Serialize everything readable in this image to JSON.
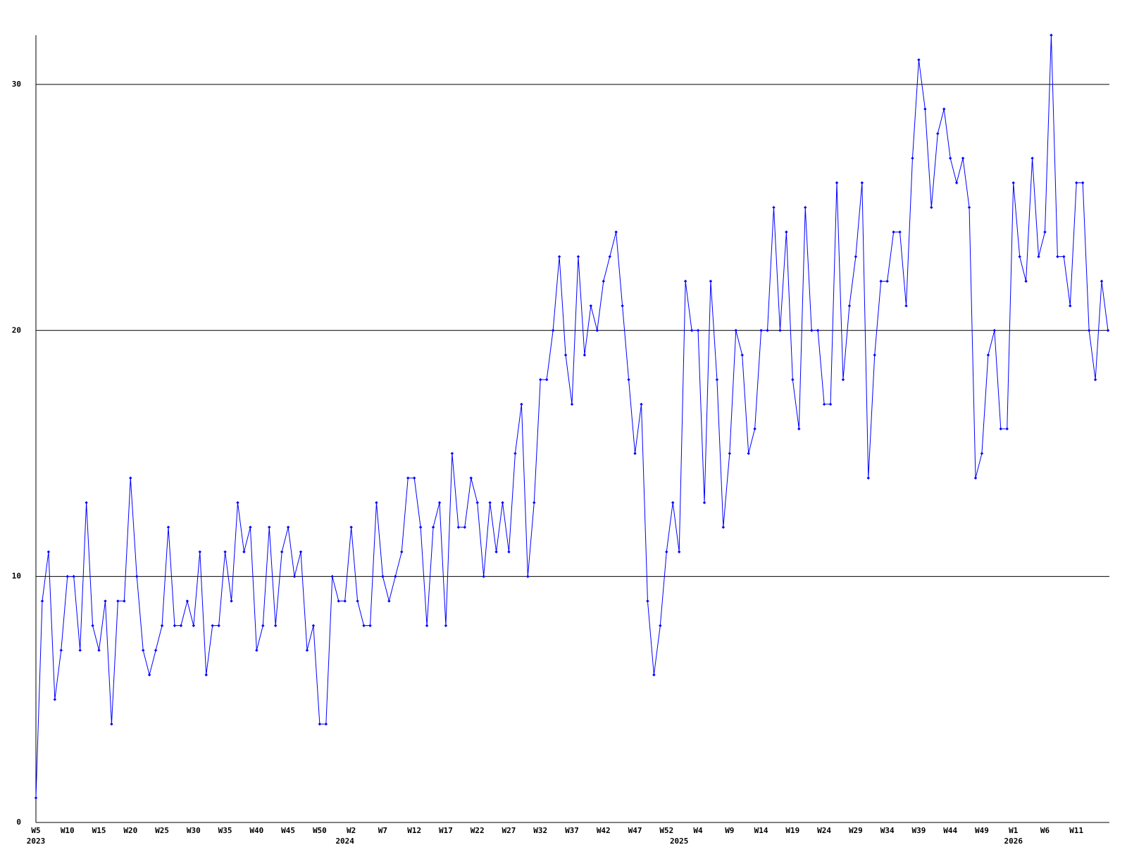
{
  "chart_data": {
    "type": "line",
    "color": "#0000ff",
    "grid": true,
    "ylim": [
      0,
      32
    ],
    "yticks": [
      0,
      10,
      20,
      30
    ],
    "categories": [
      "W5",
      null,
      null,
      null,
      null,
      "W10",
      null,
      null,
      null,
      null,
      "W15",
      null,
      null,
      null,
      null,
      "W20",
      null,
      null,
      null,
      null,
      "W25",
      null,
      null,
      null,
      null,
      "W30",
      null,
      null,
      null,
      null,
      "W35",
      null,
      null,
      null,
      null,
      "W40",
      null,
      null,
      null,
      null,
      "W45",
      null,
      null,
      null,
      null,
      "W50",
      null,
      null,
      null,
      null,
      "W2",
      null,
      null,
      null,
      null,
      "W7",
      null,
      null,
      null,
      null,
      "W12",
      null,
      null,
      null,
      null,
      "W17",
      null,
      null,
      null,
      null,
      "W22",
      null,
      null,
      null,
      null,
      "W27",
      null,
      null,
      null,
      null,
      "W32",
      null,
      null,
      null,
      null,
      "W37",
      null,
      null,
      null,
      null,
      "W42",
      null,
      null,
      null,
      null,
      "W47",
      null,
      null,
      null,
      null,
      "W52",
      null,
      null,
      null,
      null,
      "W4",
      null,
      null,
      null,
      null,
      "W9",
      null,
      null,
      null,
      null,
      "W14",
      null,
      null,
      null,
      null,
      "W19",
      null,
      null,
      null,
      null,
      "W24",
      null,
      null,
      null,
      null,
      "W29",
      null,
      null,
      null,
      null,
      "W34",
      null,
      null,
      null,
      null,
      "W39",
      null,
      null,
      null,
      null,
      "W44",
      null,
      null,
      null,
      null,
      "W49",
      null,
      null,
      null,
      null,
      "W1",
      null,
      null,
      null,
      null,
      "W6",
      null,
      null,
      null,
      null,
      "W11",
      null,
      null,
      null,
      null,
      null
    ],
    "years": [
      "2023",
      null,
      null,
      null,
      null,
      null,
      null,
      null,
      null,
      null,
      null,
      null,
      null,
      null,
      null,
      null,
      null,
      null,
      null,
      null,
      null,
      null,
      null,
      null,
      null,
      null,
      null,
      null,
      null,
      null,
      null,
      null,
      null,
      null,
      null,
      null,
      null,
      null,
      null,
      null,
      null,
      null,
      null,
      null,
      null,
      null,
      null,
      null,
      null,
      "2024",
      null,
      null,
      null,
      null,
      null,
      null,
      null,
      null,
      null,
      null,
      null,
      null,
      null,
      null,
      null,
      null,
      null,
      null,
      null,
      null,
      null,
      null,
      null,
      null,
      null,
      null,
      null,
      null,
      null,
      null,
      null,
      null,
      null,
      null,
      null,
      null,
      null,
      null,
      null,
      null,
      null,
      null,
      null,
      null,
      null,
      null,
      null,
      null,
      null,
      null,
      null,
      null,
      "2025",
      null,
      null,
      null,
      null,
      null,
      null,
      null,
      null,
      null,
      null,
      null,
      null,
      null,
      null,
      null,
      null,
      null,
      null,
      null,
      null,
      null,
      null,
      null,
      null,
      null,
      null,
      null,
      null,
      null,
      null,
      null,
      null,
      null,
      null,
      null,
      null,
      null,
      null,
      null,
      null,
      null,
      null,
      null,
      null,
      null,
      null,
      null,
      null,
      null,
      null,
      null,
      null,
      "2026",
      null,
      null,
      null,
      null,
      null,
      null,
      null,
      null,
      null,
      null,
      null,
      null,
      null,
      null,
      null
    ],
    "values": [
      1,
      9,
      11,
      5,
      7,
      10,
      10,
      7,
      13,
      8,
      7,
      9,
      4,
      9,
      9,
      14,
      10,
      7,
      6,
      7,
      8,
      12,
      8,
      8,
      9,
      8,
      11,
      6,
      8,
      8,
      11,
      9,
      13,
      11,
      12,
      7,
      8,
      12,
      8,
      11,
      12,
      10,
      11,
      7,
      8,
      4,
      4,
      10,
      9,
      9,
      12,
      9,
      8,
      8,
      13,
      10,
      9,
      10,
      11,
      14,
      14,
      12,
      8,
      12,
      13,
      8,
      15,
      12,
      12,
      14,
      13,
      10,
      13,
      11,
      13,
      11,
      15,
      17,
      10,
      13,
      18,
      18,
      20,
      23,
      19,
      17,
      23,
      19,
      21,
      20,
      22,
      23,
      24,
      21,
      18,
      15,
      17,
      9,
      6,
      8,
      11,
      13,
      11,
      22,
      20,
      20,
      13,
      22,
      18,
      12,
      15,
      20,
      19,
      15,
      16,
      20,
      20,
      25,
      20,
      24,
      18,
      16,
      25,
      20,
      20,
      17,
      17,
      26,
      18,
      21,
      23,
      26,
      14,
      19,
      22,
      22,
      24,
      24,
      21,
      27,
      31,
      29,
      25,
      28,
      29,
      27,
      26,
      27,
      25,
      14,
      15,
      19,
      20,
      16,
      16,
      26,
      23,
      22,
      27,
      23,
      24,
      32,
      23,
      23,
      21,
      26,
      26,
      20,
      18,
      22,
      20
    ]
  }
}
